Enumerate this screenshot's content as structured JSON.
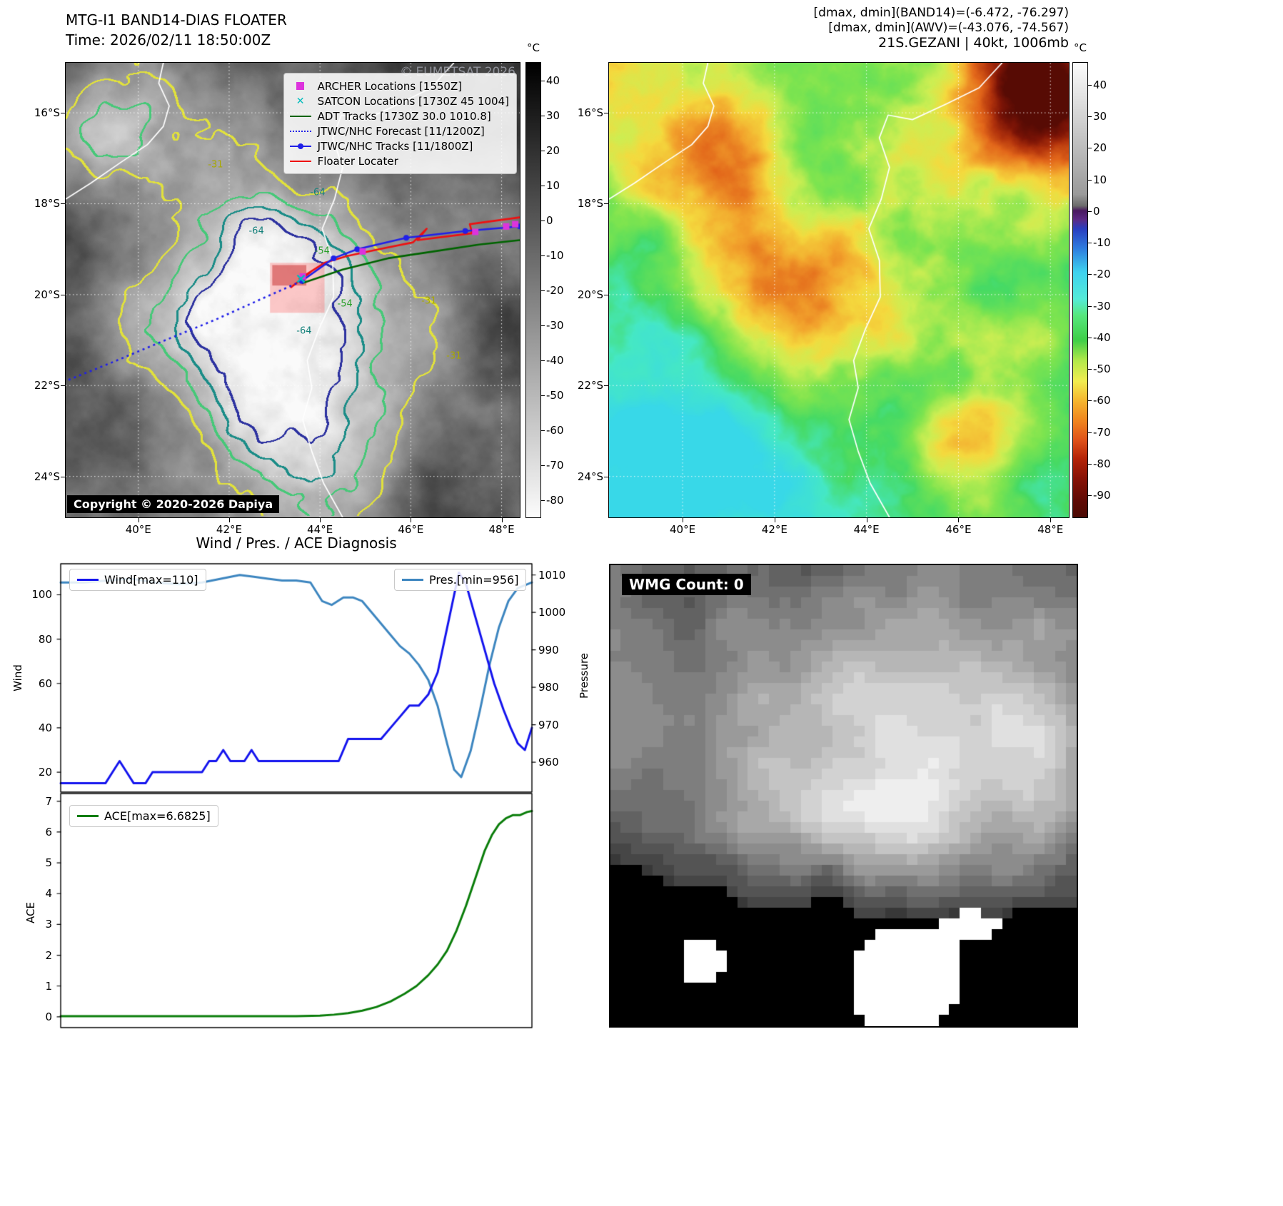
{
  "band14": {
    "title": "MTG-I1 BAND14-DIAS FLOATER",
    "time": "Time: 2026/02/11 18:50:00Z",
    "watermark": "© EUMETSAT 2026",
    "copyright": "Copyright © 2020-2026 Dapiya",
    "x_tick_labels": [
      "40°E",
      "42°E",
      "44°E",
      "46°E",
      "48°E"
    ],
    "x_tick_lons": [
      40,
      42,
      44,
      46,
      48
    ],
    "y_tick_labels": [
      "16°S",
      "18°S",
      "20°S",
      "22°S",
      "24°S"
    ],
    "y_tick_lats": [
      16,
      18,
      20,
      22,
      24
    ],
    "legend": [
      {
        "label": "ARCHER Locations [1550Z]",
        "marker": "square",
        "color": "#dd33dd"
      },
      {
        "label": "SATCON Locations [1730Z 45 1004]",
        "marker": "x",
        "color": "#00bdbd"
      },
      {
        "label": "ADT Tracks [1730Z 30.0 1010.8]",
        "marker": "line",
        "color": "#006400"
      },
      {
        "label": "JTWC/NHC Forecast [11/1200Z]",
        "marker": "dotted",
        "color": "#2020e8"
      },
      {
        "label": "JTWC/NHC Tracks [11/1800Z]",
        "marker": "line-dot",
        "color": "#2020e8"
      },
      {
        "label": "Floater Locater",
        "marker": "line",
        "color": "#ee1111"
      }
    ],
    "colorbar": {
      "unit": "°C",
      "vmin": -85,
      "vmax": 45,
      "ticks": [
        40,
        30,
        20,
        10,
        0,
        -10,
        -20,
        -30,
        -40,
        -50,
        -60,
        -70,
        -80
      ],
      "stops": [
        [
          0,
          "#000000"
        ],
        [
          1,
          "#fcfcfc"
        ]
      ]
    },
    "contours": [
      {
        "level": 0.55,
        "color": "#e1e13c"
      },
      {
        "level": 0.68,
        "color": "#46c878"
      },
      {
        "level": 0.8,
        "color": "#1a8c87"
      },
      {
        "level": 0.905,
        "color": "#2d32a0"
      }
    ],
    "contour_labels": [
      {
        "text": "-31",
        "fx": 0.33,
        "fy": 0.225,
        "color": "#a8a800"
      },
      {
        "text": "-64",
        "fx": 0.555,
        "fy": 0.285,
        "color": "#13807a"
      },
      {
        "text": "-64",
        "fx": 0.42,
        "fy": 0.37,
        "color": "#13807a"
      },
      {
        "text": "-54",
        "fx": 0.565,
        "fy": 0.415,
        "color": "#2aa02a"
      },
      {
        "text": "-64",
        "fx": 0.525,
        "fy": 0.59,
        "color": "#13807a"
      },
      {
        "text": "-54",
        "fx": 0.615,
        "fy": 0.53,
        "color": "#2aa02a"
      },
      {
        "text": "-31",
        "fx": 0.8,
        "fy": 0.525,
        "color": "#a8a800"
      },
      {
        "text": "-31",
        "fx": 0.855,
        "fy": 0.645,
        "color": "#a8a800"
      }
    ]
  },
  "awv": {
    "header_lines": [
      "[dmax, dmin](BAND14)=(-6.472, -76.297)",
      "[dmax, dmin](AWV)=(-43.076, -74.567)",
      "21S.GEZANI | 40kt, 1006mb"
    ],
    "x_tick_labels": [
      "40°E",
      "42°E",
      "44°E",
      "46°E",
      "48°E"
    ],
    "x_tick_lons": [
      40,
      42,
      44,
      46,
      48
    ],
    "y_tick_labels": [
      "16°S",
      "18°S",
      "20°S",
      "22°S",
      "24°S"
    ],
    "y_tick_lats": [
      16,
      18,
      20,
      22,
      24
    ],
    "colorbar": {
      "unit": "°C",
      "vmin": -97,
      "vmax": 47,
      "ticks": [
        40,
        30,
        20,
        10,
        0,
        -10,
        -20,
        -30,
        -40,
        -50,
        -60,
        -70,
        -80,
        -90
      ],
      "stops": [
        [
          0.0,
          "#fcfcfc"
        ],
        [
          0.29,
          "#9a9a9a"
        ],
        [
          0.315,
          "#6b6b6b"
        ],
        [
          0.325,
          "#4a1a60"
        ],
        [
          0.345,
          "#5c2a86"
        ],
        [
          0.365,
          "#2a3ec0"
        ],
        [
          0.41,
          "#2f7fe0"
        ],
        [
          0.46,
          "#3fd2f0"
        ],
        [
          0.52,
          "#55ecd8"
        ],
        [
          0.555,
          "#57e87e"
        ],
        [
          0.61,
          "#3ecf48"
        ],
        [
          0.655,
          "#b2e94a"
        ],
        [
          0.7,
          "#f2ee50"
        ],
        [
          0.745,
          "#f5b42e"
        ],
        [
          0.79,
          "#ef821e"
        ],
        [
          0.83,
          "#e0521a"
        ],
        [
          0.87,
          "#b52408"
        ],
        [
          0.915,
          "#871206"
        ],
        [
          0.965,
          "#5e0a05"
        ],
        [
          1,
          "#4c0a04"
        ]
      ]
    },
    "map_stops": [
      [
        0,
        "#38d8e8"
      ],
      [
        0.16,
        "#45e8c4"
      ],
      [
        0.28,
        "#46da64"
      ],
      [
        0.4,
        "#7ee44f"
      ],
      [
        0.5,
        "#cdee52"
      ],
      [
        0.58,
        "#f4da3e"
      ],
      [
        0.68,
        "#f2a22c"
      ],
      [
        0.78,
        "#e2661a"
      ],
      [
        0.87,
        "#b1320c"
      ],
      [
        0.94,
        "#7c1406"
      ],
      [
        1,
        "#570b04"
      ]
    ]
  },
  "map_overlays": {
    "grid_lons": [
      40,
      42,
      44,
      46,
      48
    ],
    "grid_lats": [
      -16,
      -18,
      -20,
      -22,
      -24
    ],
    "coastline_color": "#ffffff",
    "coastlines": [
      [
        [
          40.55,
          -14.9
        ],
        [
          40.45,
          -15.35
        ],
        [
          40.68,
          -15.85
        ],
        [
          40.55,
          -16.3
        ],
        [
          40.2,
          -16.7
        ],
        [
          39.6,
          -17.1
        ],
        [
          38.95,
          -17.55
        ],
        [
          38.4,
          -17.9
        ]
      ],
      [
        [
          46.95,
          -14.9
        ],
        [
          46.45,
          -15.45
        ],
        [
          45.75,
          -15.8
        ],
        [
          45.0,
          -16.15
        ],
        [
          44.47,
          -16.05
        ],
        [
          44.28,
          -16.55
        ],
        [
          44.5,
          -17.2
        ],
        [
          44.32,
          -17.9
        ],
        [
          44.05,
          -18.55
        ],
        [
          44.28,
          -19.25
        ],
        [
          44.3,
          -20.05
        ],
        [
          43.98,
          -20.75
        ],
        [
          43.72,
          -21.45
        ],
        [
          43.82,
          -22.05
        ],
        [
          43.62,
          -22.75
        ],
        [
          43.82,
          -23.45
        ],
        [
          44.08,
          -24.15
        ],
        [
          44.5,
          -24.9
        ]
      ]
    ],
    "highlight_boxes": [
      {
        "lon1": 42.9,
        "lat1": -19.3,
        "lon2": 44.1,
        "lat2": -20.4,
        "color": "rgba(255,70,70,0.28)"
      },
      {
        "lon1": 42.95,
        "lat1": -19.35,
        "lon2": 43.7,
        "lat2": -19.8,
        "color": "rgba(190,25,25,0.45)"
      }
    ],
    "tracks": [
      {
        "name": "adt",
        "color": "#006400",
        "style": "solid",
        "points": [
          [
            43.6,
            -19.75
          ],
          [
            44.5,
            -19.45
          ],
          [
            45.5,
            -19.2
          ],
          [
            46.5,
            -19.05
          ],
          [
            47.5,
            -18.9
          ],
          [
            48.4,
            -18.8
          ]
        ]
      },
      {
        "name": "floater",
        "color": "#ee1111",
        "style": "solid",
        "points": [
          [
            43.35,
            -19.85
          ],
          [
            43.8,
            -19.5
          ],
          [
            43.55,
            -19.65
          ],
          [
            44.1,
            -19.3
          ],
          [
            44.6,
            -19.15
          ],
          [
            45.3,
            -19.0
          ],
          [
            46.05,
            -18.85
          ],
          [
            46.35,
            -18.55
          ],
          [
            46.15,
            -18.8
          ],
          [
            47.35,
            -18.65
          ],
          [
            47.3,
            -18.45
          ],
          [
            48.4,
            -18.3
          ]
        ]
      },
      {
        "name": "jtwc_forecast",
        "color": "#2020e8",
        "style": "dotted",
        "points": [
          [
            43.6,
            -19.7
          ],
          [
            42.7,
            -20.1
          ],
          [
            41.7,
            -20.55
          ],
          [
            40.6,
            -21.0
          ],
          [
            39.4,
            -21.5
          ],
          [
            38.4,
            -21.9
          ]
        ]
      },
      {
        "name": "jtwc_track",
        "color": "#2020e8",
        "style": "solid-dot",
        "points": [
          [
            43.6,
            -19.7
          ],
          [
            44.3,
            -19.2
          ],
          [
            44.82,
            -19.0
          ],
          [
            45.9,
            -18.75
          ],
          [
            47.2,
            -18.6
          ],
          [
            48.4,
            -18.5
          ]
        ]
      }
    ],
    "archer_points": {
      "color": "#dd33dd",
      "points": [
        [
          43.62,
          -19.6
        ],
        [
          44.94,
          -19.05
        ],
        [
          47.42,
          -18.62
        ],
        [
          48.1,
          -18.5
        ],
        [
          48.3,
          -18.45
        ]
      ]
    },
    "satcon_points": {
      "color": "#00bdbd",
      "points": [
        [
          43.58,
          -19.65
        ]
      ]
    }
  },
  "diagnosis": {
    "title": "Wind / Pres. / ACE Diagnosis",
    "wind_axis_label": "Wind",
    "pres_axis_label": "Pressure",
    "ace_axis_label": "ACE"
  },
  "wmg": {
    "label": "WMG Count: 0"
  },
  "chart_data": [
    {
      "type": "line",
      "title": "Wind / Pres. / ACE Diagnosis",
      "x_range": [
        0,
        1
      ],
      "series": [
        {
          "name": "Wind[max=110]",
          "ylabel": "Wind",
          "axis": "left",
          "color": "#1414ee",
          "ylim": [
            11,
            114
          ],
          "yticks": [
            20,
            40,
            60,
            80,
            100
          ],
          "x": [
            0,
            0.06,
            0.095,
            0.11,
            0.125,
            0.14,
            0.155,
            0.18,
            0.195,
            0.21,
            0.25,
            0.285,
            0.3,
            0.315,
            0.33,
            0.345,
            0.36,
            0.375,
            0.39,
            0.405,
            0.42,
            0.45,
            0.49,
            0.53,
            0.565,
            0.59,
            0.61,
            0.63,
            0.66,
            0.68,
            0.7,
            0.72,
            0.74,
            0.76,
            0.78,
            0.8,
            0.815,
            0.83,
            0.845,
            0.86,
            0.88,
            0.9,
            0.92,
            0.94,
            0.955,
            0.97,
            0.985,
            1
          ],
          "y": [
            15,
            15,
            15,
            20,
            25,
            20,
            15,
            15,
            20,
            20,
            20,
            20,
            20,
            25,
            25,
            30,
            25,
            25,
            25,
            30,
            25,
            25,
            25,
            25,
            25,
            25,
            35,
            35,
            35,
            35,
            40,
            45,
            50,
            50,
            55,
            65,
            80,
            95,
            110,
            105,
            90,
            75,
            60,
            48,
            40,
            33,
            30,
            40
          ]
        },
        {
          "name": "Pres.[min=956]",
          "ylabel": "Pressure",
          "axis": "right",
          "color": "#3d86c0",
          "ylim": [
            952,
            1013
          ],
          "yticks": [
            960,
            970,
            980,
            990,
            1000,
            1010
          ],
          "x": [
            0,
            0.05,
            0.1,
            0.15,
            0.2,
            0.25,
            0.3,
            0.34,
            0.38,
            0.41,
            0.44,
            0.47,
            0.5,
            0.53,
            0.555,
            0.575,
            0.6,
            0.62,
            0.64,
            0.66,
            0.68,
            0.7,
            0.72,
            0.74,
            0.76,
            0.78,
            0.8,
            0.82,
            0.835,
            0.85,
            0.87,
            0.89,
            0.91,
            0.93,
            0.95,
            0.97,
            1
          ],
          "y": [
            1008,
            1008,
            1008.5,
            1009,
            1008,
            1007.5,
            1008,
            1009,
            1010,
            1009.5,
            1009,
            1008.5,
            1008.5,
            1008,
            1003,
            1002,
            1004,
            1004,
            1003,
            1000,
            997,
            994,
            991,
            989,
            986,
            982,
            975,
            965,
            958,
            956,
            963,
            974,
            986,
            996,
            1003,
            1006.5,
            1008
          ]
        }
      ]
    },
    {
      "type": "line",
      "series": [
        {
          "name": "ACE[max=6.6825]",
          "ylabel": "ACE",
          "axis": "left",
          "color": "#0a7d0a",
          "ylim": [
            -0.35,
            7.25
          ],
          "yticks": [
            0,
            1,
            2,
            3,
            4,
            5,
            6,
            7
          ],
          "x": [
            0,
            0.1,
            0.2,
            0.3,
            0.4,
            0.5,
            0.55,
            0.58,
            0.61,
            0.64,
            0.67,
            0.7,
            0.73,
            0.755,
            0.78,
            0.8,
            0.82,
            0.84,
            0.86,
            0.88,
            0.9,
            0.915,
            0.93,
            0.945,
            0.96,
            0.975,
            0.99,
            1
          ],
          "y": [
            0.02,
            0.02,
            0.02,
            0.02,
            0.02,
            0.02,
            0.04,
            0.07,
            0.12,
            0.2,
            0.32,
            0.5,
            0.75,
            1,
            1.35,
            1.7,
            2.15,
            2.8,
            3.6,
            4.5,
            5.4,
            5.9,
            6.25,
            6.45,
            6.55,
            6.55,
            6.65,
            6.6825
          ]
        }
      ]
    }
  ]
}
